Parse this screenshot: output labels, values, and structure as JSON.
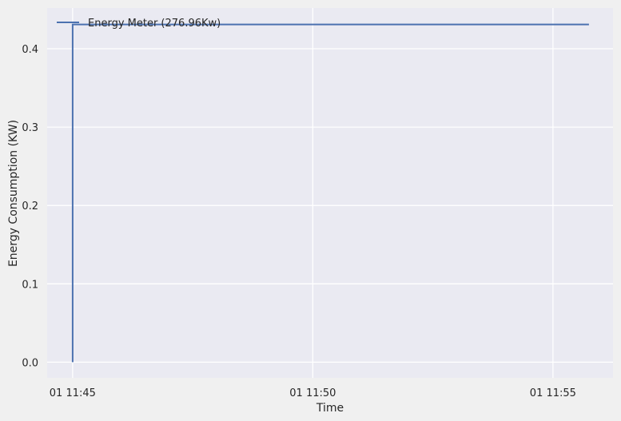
{
  "chart_data": {
    "type": "line",
    "xlabel": "Time",
    "ylabel": "Energy Consumption (KW)",
    "x_ticks": [
      "01 11:45",
      "01 11:50",
      "01 11:55"
    ],
    "x_tick_minutes": [
      45,
      50,
      55
    ],
    "y_ticks": [
      "0.0",
      "0.1",
      "0.2",
      "0.3",
      "0.4"
    ],
    "y_tick_values": [
      0.0,
      0.1,
      0.2,
      0.3,
      0.4
    ],
    "xlim": [
      44.47,
      56.25
    ],
    "ylim": [
      -0.02,
      0.452
    ],
    "grid": true,
    "legend_position": "top-left",
    "line_color": "#4c72b0",
    "plot_bg": "#eaeaf2",
    "series": [
      {
        "name": "Energy Meter (276.96Kw)",
        "x_minutes": [
          45.0,
          45.0,
          55.75
        ],
        "values": [
          0.0,
          0.431,
          0.431
        ]
      }
    ]
  }
}
